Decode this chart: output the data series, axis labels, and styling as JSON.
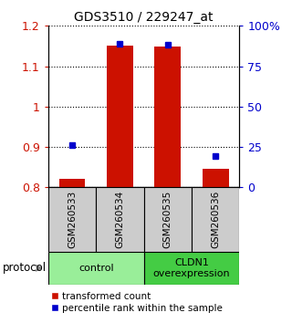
{
  "title": "GDS3510 / 229247_at",
  "samples": [
    "GSM260533",
    "GSM260534",
    "GSM260535",
    "GSM260536"
  ],
  "groups": [
    {
      "label": "control",
      "color": "#99ee99",
      "samples": [
        0,
        1
      ]
    },
    {
      "label": "CLDN1\noverexpression",
      "color": "#44cc44",
      "samples": [
        2,
        3
      ]
    }
  ],
  "bar_values": [
    0.821,
    1.152,
    1.148,
    0.847
  ],
  "percentile_values": [
    0.905,
    1.155,
    1.153,
    0.878
  ],
  "bar_base": 0.8,
  "ylim_left": [
    0.8,
    1.2
  ],
  "ylim_right": [
    0,
    100
  ],
  "yticks_left": [
    0.8,
    0.9,
    1.0,
    1.1,
    1.2
  ],
  "yticks_right": [
    0,
    25,
    50,
    75,
    100
  ],
  "ytick_labels_left": [
    "0.8",
    "0.9",
    "1",
    "1.1",
    "1.2"
  ],
  "ytick_labels_right": [
    "0",
    "25",
    "50",
    "75",
    "100%"
  ],
  "bar_color": "#cc1100",
  "percentile_color": "#0000cc",
  "bar_width": 0.55,
  "sample_box_color": "#cccccc",
  "legend_bar_label": "transformed count",
  "legend_pct_label": "percentile rank within the sample",
  "protocol_label": "protocol"
}
